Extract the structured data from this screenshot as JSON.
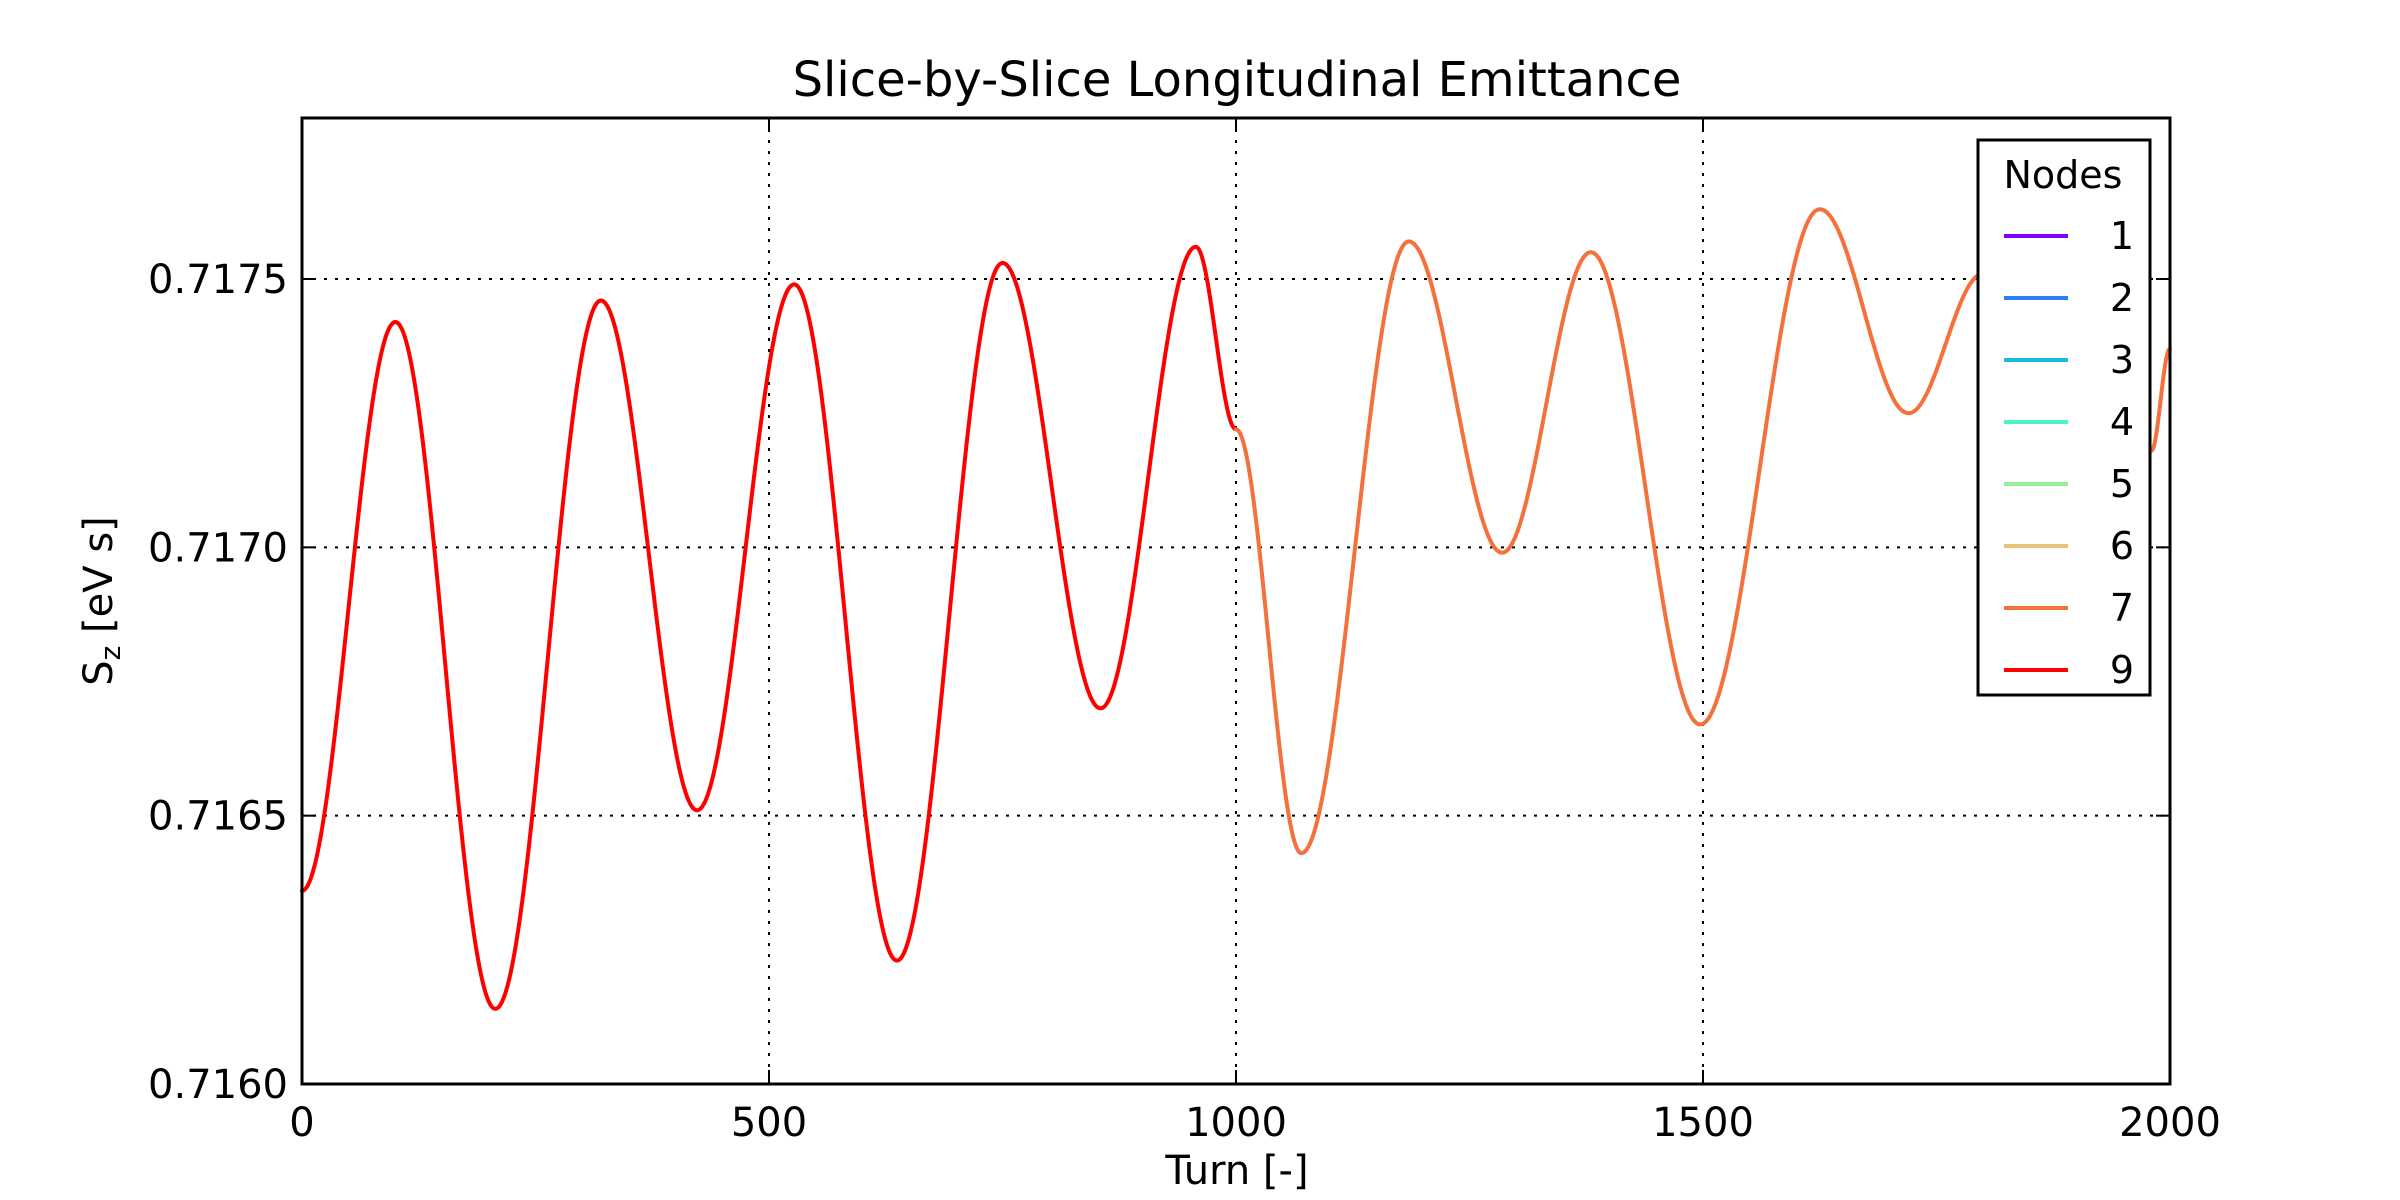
{
  "chart_data": {
    "type": "line",
    "title": "Slice-by-Slice Longitudinal Emittance",
    "xlabel": "Turn [-]",
    "ylabel_main": "S",
    "ylabel_sub": "z",
    "ylabel_unit": " [eV s]",
    "xlim": [
      0,
      2000
    ],
    "ylim": [
      0.716,
      0.7178
    ],
    "xticks": [
      0,
      500,
      1000,
      1500,
      2000
    ],
    "xtick_labels": [
      "0",
      "500",
      "1000",
      "1500",
      "2000"
    ],
    "yticks": [
      0.716,
      0.7165,
      0.717,
      0.7175
    ],
    "ytick_labels": [
      "0.7160",
      "0.7165",
      "0.7170",
      "0.7175"
    ],
    "grid": true,
    "legend": {
      "title": "Nodes",
      "position": "top-right",
      "entries": [
        {
          "label": "1",
          "color": "#8000ff"
        },
        {
          "label": "2",
          "color": "#2c7ef7"
        },
        {
          "label": "3",
          "color": "#18bcd8"
        },
        {
          "label": "4",
          "color": "#4ef0c8"
        },
        {
          "label": "5",
          "color": "#94f09a"
        },
        {
          "label": "6",
          "color": "#e8c47a"
        },
        {
          "label": "7",
          "color": "#f4703c"
        },
        {
          "label": "9",
          "color": "#ff0000"
        }
      ]
    },
    "series": [
      {
        "name": "9",
        "color": "#ff0000",
        "x": [
          0,
          100,
          207,
          320,
          423,
          527,
          637,
          750,
          855,
          957,
          1000
        ],
        "y": [
          0.71636,
          0.71742,
          0.71614,
          0.71746,
          0.71651,
          0.71749,
          0.71623,
          0.71753,
          0.7167,
          0.71756,
          0.71722
        ]
      },
      {
        "name": "7",
        "color": "#f4703c",
        "x": [
          1000,
          1070,
          1185,
          1285,
          1380,
          1497,
          1625,
          1720,
          1800,
          1980,
          2000
        ],
        "y": [
          0.71722,
          0.71643,
          0.71757,
          0.71699,
          0.71755,
          0.71667,
          0.71763,
          0.71725,
          0.71751,
          0.71718,
          0.71737
        ]
      }
    ]
  }
}
